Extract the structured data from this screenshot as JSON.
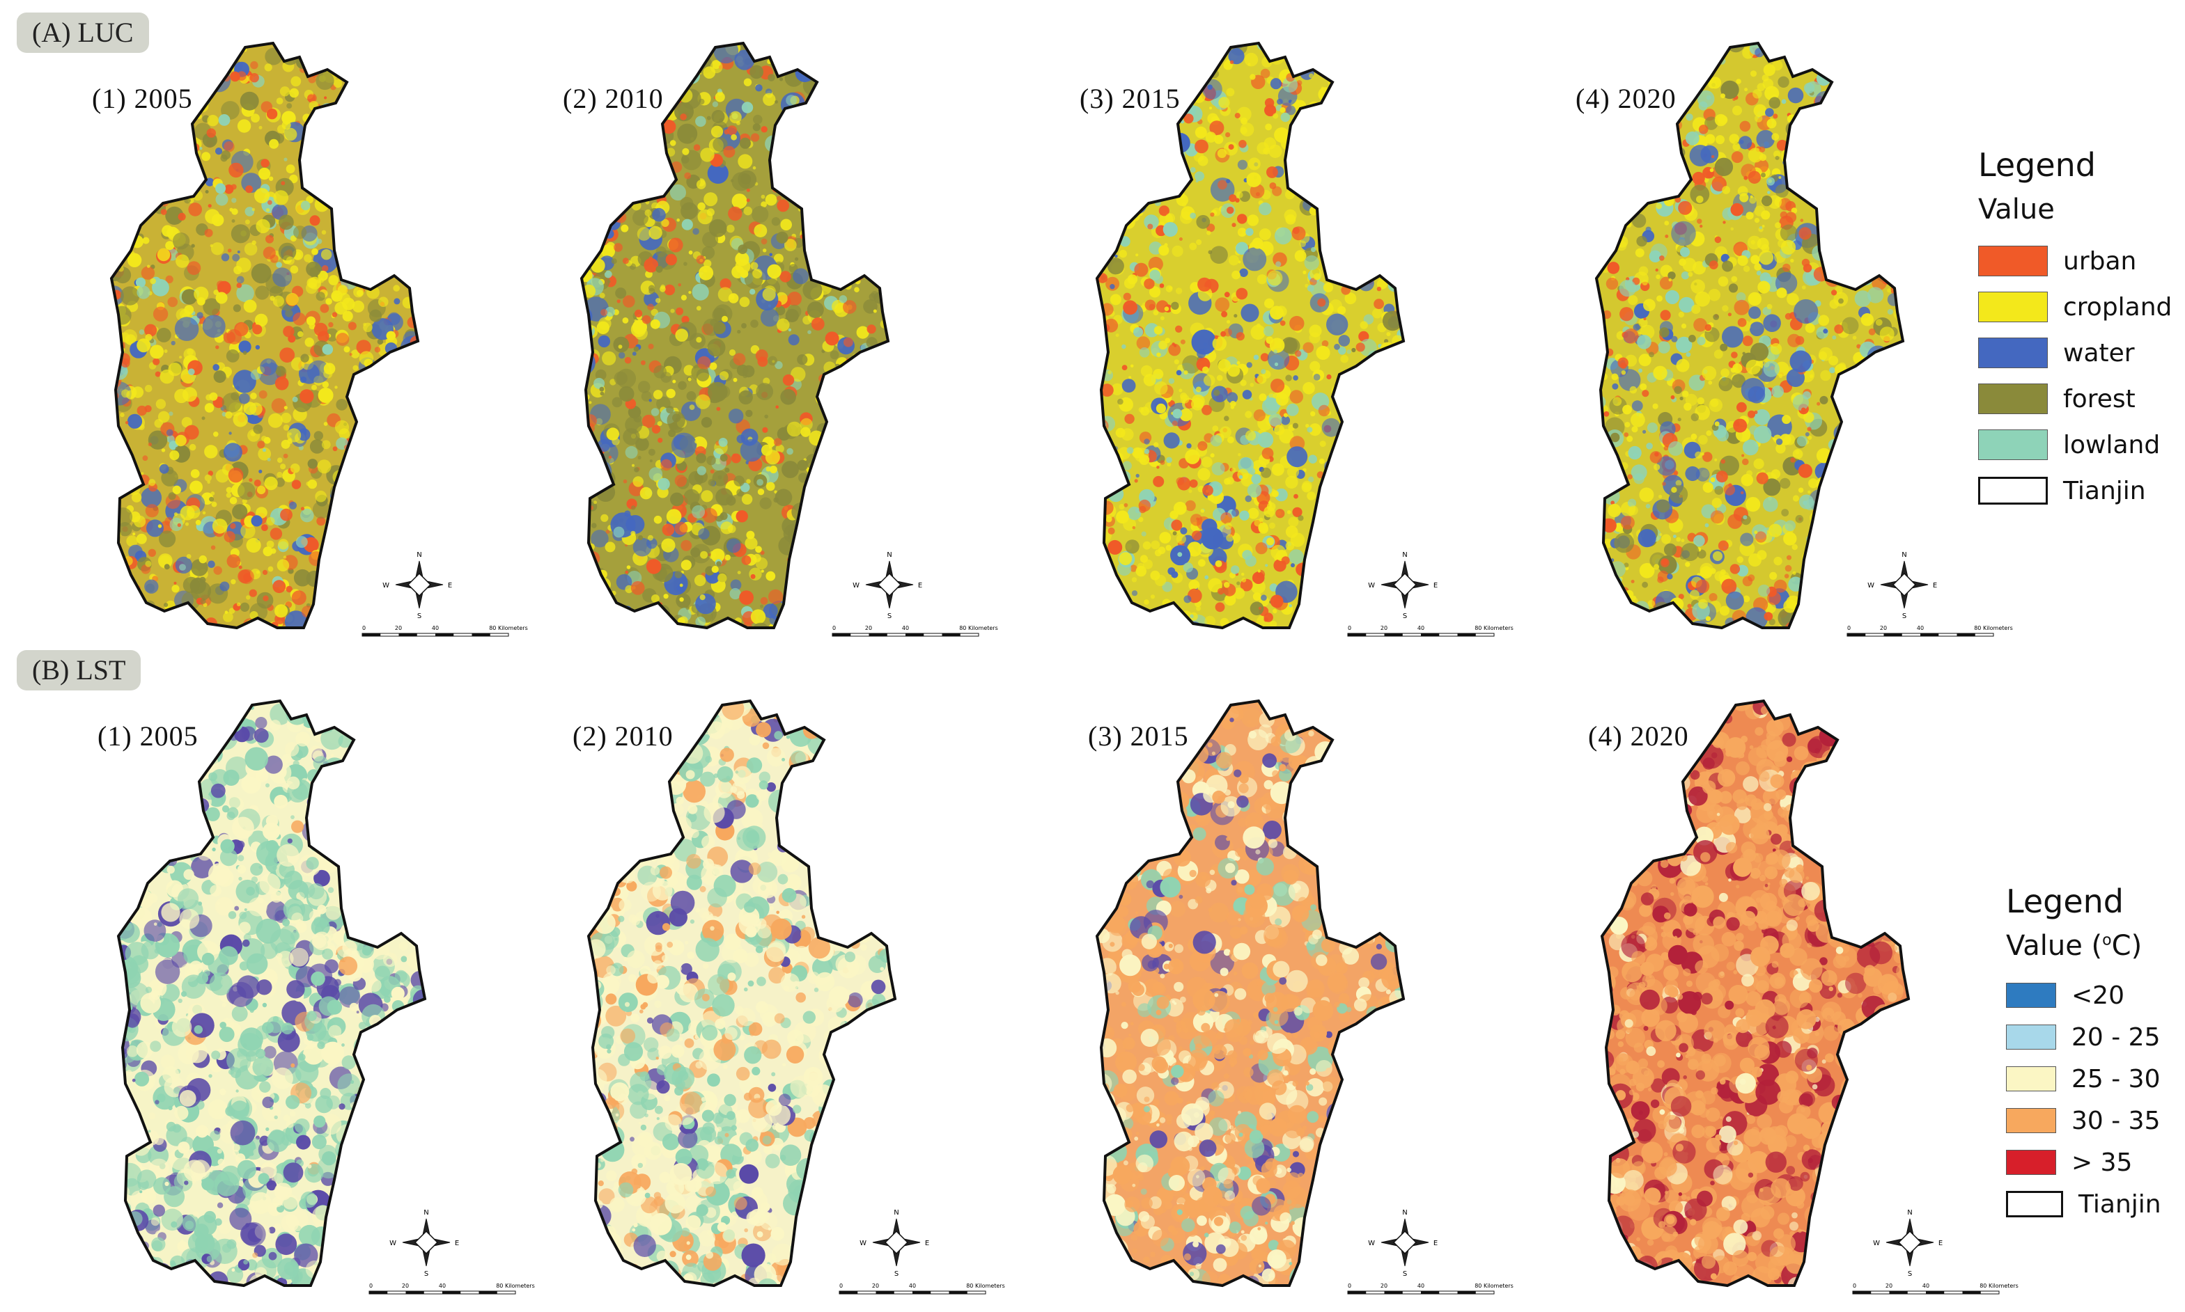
{
  "sections": {
    "luc": {
      "label": "(A) LUC"
    },
    "lst": {
      "label": "(B) LST"
    }
  },
  "luc_panels": [
    {
      "title": "(1) 2005",
      "year": 2005,
      "mix": {
        "base": "#c9b235",
        "urban": 0.25,
        "cropland": 0.45,
        "water": 0.1,
        "forest": 0.15,
        "lowland": 0.05
      }
    },
    {
      "title": "(2) 2010",
      "year": 2010,
      "mix": {
        "base": "#a5a03c",
        "urban": 0.2,
        "cropland": 0.35,
        "water": 0.1,
        "forest": 0.3,
        "lowland": 0.05
      }
    },
    {
      "title": "(3) 2015",
      "year": 2015,
      "mix": {
        "base": "#d9cf2e",
        "urban": 0.25,
        "cropland": 0.45,
        "water": 0.1,
        "forest": 0.05,
        "lowland": 0.15
      }
    },
    {
      "title": "(4) 2020",
      "year": 2020,
      "mix": {
        "base": "#d4c82f",
        "urban": 0.25,
        "cropland": 0.4,
        "water": 0.1,
        "forest": 0.1,
        "lowland": 0.15
      }
    }
  ],
  "lst_panels": [
    {
      "title": "(1) 2005",
      "year": 2005,
      "base": "#f6f4c6",
      "mix": {
        "lt20": 0.18,
        "c20_25": 0.0,
        "c25_30": 0.35,
        "c30_35": 0.02,
        "gt35": 0.0,
        "green": 0.45
      }
    },
    {
      "title": "(2) 2010",
      "year": 2010,
      "base": "#f6f2c8",
      "mix": {
        "lt20": 0.05,
        "c20_25": 0.0,
        "c25_30": 0.45,
        "c30_35": 0.2,
        "gt35": 0.0,
        "green": 0.3
      }
    },
    {
      "title": "(3) 2015",
      "year": 2015,
      "base": "#f3a466",
      "mix": {
        "lt20": 0.08,
        "c20_25": 0.0,
        "c25_30": 0.3,
        "c30_35": 0.52,
        "gt35": 0.0,
        "green": 0.1
      }
    },
    {
      "title": "(4) 2020",
      "year": 2020,
      "base": "#ee8a52",
      "mix": {
        "lt20": 0.0,
        "c20_25": 0.0,
        "c25_30": 0.12,
        "c30_35": 0.68,
        "gt35": 0.2,
        "green": 0.0
      }
    }
  ],
  "legend_luc": {
    "title": "Legend",
    "subtitle": "Value",
    "items": [
      {
        "label": "urban",
        "color": "#f05a28"
      },
      {
        "label": "cropland",
        "color": "#f3e81b"
      },
      {
        "label": "water",
        "color": "#4468c0"
      },
      {
        "label": "forest",
        "color": "#8a8a3a"
      },
      {
        "label": "lowland",
        "color": "#8ed3b8"
      }
    ],
    "boundary_label": "Tianjin"
  },
  "legend_lst": {
    "title": "Legend",
    "subtitle": "Value (",
    "unit_sup": "o",
    "unit_rest": "C)",
    "items": [
      {
        "label": "<20",
        "color": "#2e7bc0"
      },
      {
        "label": "20 - 25",
        "color": "#a8d8ea"
      },
      {
        "label": "25 - 30",
        "color": "#fbf6c4"
      },
      {
        "label": "30 - 35",
        "color": "#f7a85e"
      },
      {
        "label": "> 35",
        "color": "#d71f2a"
      }
    ],
    "boundary_label": "Tianjin"
  },
  "lst_palette": {
    "green": "#8fd4b2",
    "purple": "#5a4aa8"
  },
  "scale_bar": {
    "ticks": [
      "0",
      "20",
      "40",
      "80 Kilometers"
    ]
  },
  "north_arrow": {
    "n": "N",
    "s": "S",
    "e": "E",
    "w": "W"
  }
}
